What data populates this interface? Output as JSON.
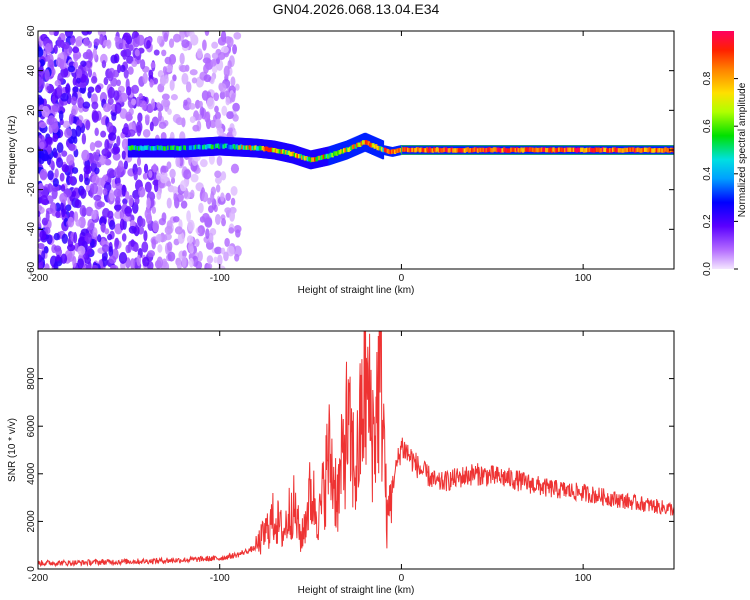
{
  "figure_title": "GN04.2026.068.13.04.E34",
  "chart_data": [
    {
      "type": "heatmap",
      "title": "GN04.2026.068.13.04.E34",
      "xlabel": "Height of straight line (km)",
      "ylabel": "Frequency (Hz)",
      "xlim": [
        -200,
        150
      ],
      "ylim": [
        -60,
        60
      ],
      "x_ticks": [
        -200,
        -100,
        0,
        100
      ],
      "y_ticks": [
        -60,
        -40,
        -20,
        0,
        20,
        40,
        60
      ],
      "colorbar": {
        "label": "Normalized spectral amplitude",
        "range": [
          0,
          1
        ],
        "ticks": [
          0.0,
          0.2,
          0.4,
          0.6,
          0.8
        ]
      },
      "ridge": {
        "description_points_x": [
          -150,
          -120,
          -100,
          -80,
          -70,
          -60,
          -50,
          -40,
          -30,
          -20,
          -15,
          -10,
          -5,
          0,
          20,
          60,
          100,
          150
        ],
        "description_points_y": [
          1,
          1,
          2,
          1,
          0,
          -2,
          -5,
          -3,
          0,
          4,
          2,
          0,
          -1,
          0,
          0,
          0,
          0,
          0
        ]
      },
      "noise_region_x": [
        -200,
        -90
      ]
    },
    {
      "type": "line",
      "title": "",
      "xlabel": "Height of straight line (km)",
      "ylabel": "SNR (10 * v/v)",
      "xlim": [
        -200,
        150
      ],
      "ylim": [
        0,
        10000
      ],
      "x_ticks": [
        -200,
        -100,
        0,
        100
      ],
      "y_ticks": [
        0,
        2000,
        4000,
        6000,
        8000
      ],
      "series": [
        {
          "name": "SNR",
          "color": "#ee3333",
          "x": [
            -200,
            -180,
            -160,
            -140,
            -120,
            -100,
            -90,
            -80,
            -75,
            -70,
            -65,
            -60,
            -55,
            -50,
            -45,
            -40,
            -35,
            -30,
            -25,
            -20,
            -15,
            -12,
            -10,
            -8,
            -5,
            0,
            10,
            20,
            40,
            60,
            80,
            100,
            120,
            150
          ],
          "values": [
            250,
            260,
            300,
            330,
            380,
            450,
            600,
            900,
            1500,
            2200,
            1500,
            2800,
            1200,
            3200,
            2200,
            4800,
            3000,
            6000,
            4000,
            7800,
            5500,
            8200,
            6500,
            1800,
            3500,
            5200,
            4200,
            3600,
            4000,
            3800,
            3400,
            3200,
            2900,
            2500
          ]
        }
      ]
    }
  ]
}
